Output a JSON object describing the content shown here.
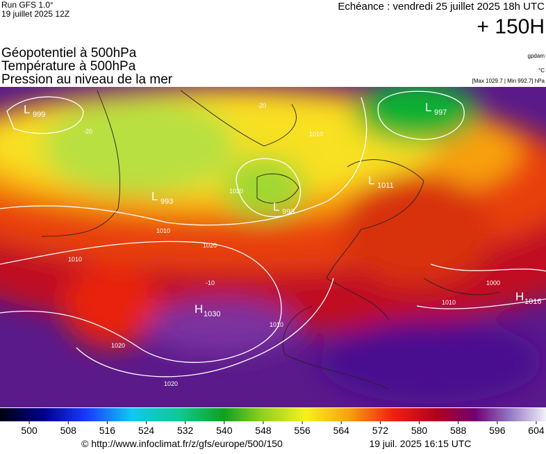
{
  "header": {
    "run": "Run GFS 1.0°",
    "run_date": "19 juillet 2025 12Z",
    "valid": "Echéance : vendredi 25 juillet 2025 18h UTC",
    "lead": "+ 150H"
  },
  "legend_titles": [
    "Géopotentiel à 500hPa",
    "Température à 500hPa",
    "Pression au niveau de la mer"
  ],
  "units": {
    "geopotential": "gpdam",
    "temperature": "°C",
    "pressure": "[Max 1029.7 | Min 992.7] hPa"
  },
  "map_labels": [
    {
      "text": "L",
      "sub": "999"
    },
    {
      "text": "L",
      "sub": "993"
    },
    {
      "text": "L",
      "sub": "993"
    },
    {
      "text": "L",
      "sub": "997"
    },
    {
      "text": "L",
      "sub": "1011"
    },
    {
      "text": "H",
      "sub": "1030"
    },
    {
      "text": "H",
      "sub": "1016"
    }
  ],
  "isobar_labels": [
    "1010",
    "1010",
    "1010",
    "1020",
    "1020",
    "1020",
    "1000",
    "1010",
    "1010",
    "1020",
    "-20",
    "-20",
    "-10"
  ],
  "colorbar": {
    "lim": [
      494,
      606
    ],
    "ticks": [
      500,
      508,
      516,
      524,
      532,
      540,
      548,
      556,
      564,
      572,
      580,
      588,
      596,
      604
    ]
  },
  "footer": {
    "source": "© http://www.infoclimat.fr/z/gfs/europe/500/150",
    "generated": "19 juil. 2025 16:15 UTC"
  }
}
